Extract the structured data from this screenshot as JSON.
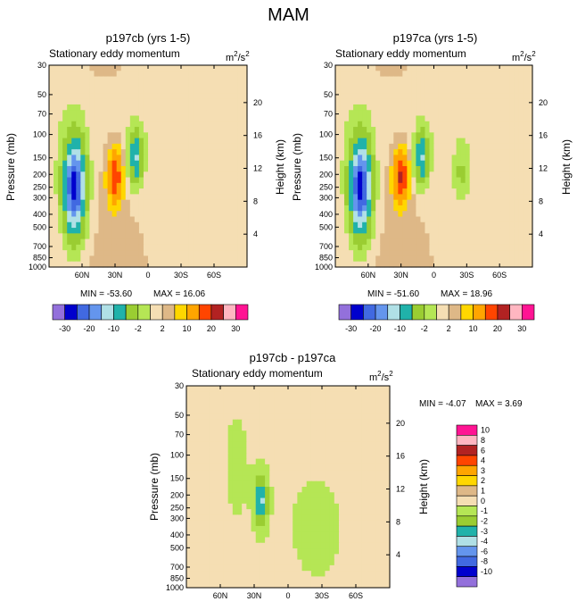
{
  "page": {
    "title": "MAM"
  },
  "colors": {
    "palette_abs": [
      "#9370db",
      "#0000cd",
      "#4169e1",
      "#6495ed",
      "#b0e0e6",
      "#20b2aa",
      "#9acd32",
      "#b5e655",
      "#f5deb3",
      "#deb887",
      "#ffd700",
      "#ffa500",
      "#ff4500",
      "#b22222",
      "#ffb6c1",
      "#ff1493"
    ],
    "palette_diff": [
      "#9370db",
      "#0000cd",
      "#4169e1",
      "#6495ed",
      "#b0e0e6",
      "#20b2aa",
      "#9acd32",
      "#b5e655",
      "#f5deb3",
      "#deb887",
      "#ffd700",
      "#ffa500",
      "#ff4500",
      "#b22222",
      "#ffb6c1",
      "#ff1493"
    ]
  },
  "chart_data": [
    {
      "type": "heatmap",
      "title": "p197cb (yrs 1-5)",
      "subtitle": "Stationary eddy momentum",
      "units_base": "m",
      "units_sup1": "2",
      "units_mid": "/s",
      "units_sup2": "2",
      "xlabel": "",
      "ylabel": "Pressure (mb)",
      "ylabel_right": "Height (km)",
      "x_ticks": [
        "60N",
        "30N",
        "0",
        "30S",
        "60S"
      ],
      "y_ticks": [
        "30",
        "50",
        "70",
        "100",
        "150",
        "200",
        "250",
        "300",
        "400",
        "500",
        "700",
        "850",
        "1000"
      ],
      "height_ticks": [
        "20",
        "16",
        "12",
        "8",
        "4"
      ],
      "min_text": "MIN = -53.60",
      "max_text": "MAX =  16.06",
      "min": -53.6,
      "max": 16.06,
      "colorbar_labels": [
        "-30",
        "-20",
        "-10",
        "-2",
        "2",
        "10",
        "20",
        "30"
      ],
      "features": [
        {
          "lat": 67,
          "p": 250,
          "value": -30
        },
        {
          "lat": 30,
          "p": 210,
          "value": 14
        },
        {
          "lat": 11,
          "p": 150,
          "value": -15
        },
        {
          "lat": -35,
          "p": 200,
          "value": -1
        }
      ]
    },
    {
      "type": "heatmap",
      "title": "p197ca (yrs 1-5)",
      "subtitle": "Stationary eddy momentum",
      "units_base": "m",
      "units_sup1": "2",
      "units_mid": "/s",
      "units_sup2": "2",
      "xlabel": "",
      "ylabel": "Pressure (mb)",
      "ylabel_right": "Height (km)",
      "x_ticks": [
        "60N",
        "30N",
        "0",
        "30S",
        "60S"
      ],
      "y_ticks": [
        "30",
        "50",
        "70",
        "100",
        "150",
        "200",
        "250",
        "300",
        "400",
        "500",
        "700",
        "850",
        "1000"
      ],
      "height_ticks": [
        "20",
        "16",
        "12",
        "8",
        "4"
      ],
      "min_text": "MIN = -51.60",
      "max_text": "MAX =  18.96",
      "min": -51.6,
      "max": 18.96,
      "colorbar_labels": [
        "-30",
        "-20",
        "-10",
        "-2",
        "2",
        "10",
        "20",
        "30"
      ],
      "features": [
        {
          "lat": 67,
          "p": 250,
          "value": -30
        },
        {
          "lat": 30,
          "p": 210,
          "value": 16
        },
        {
          "lat": 11,
          "p": 150,
          "value": -15
        },
        {
          "lat": -25,
          "p": 200,
          "value": -5
        }
      ]
    },
    {
      "type": "heatmap",
      "title": "p197cb - p197ca",
      "subtitle": "Stationary eddy momentum",
      "units_base": "m",
      "units_sup1": "2",
      "units_mid": "/s",
      "units_sup2": "2",
      "xlabel": "",
      "ylabel": "Pressure (mb)",
      "ylabel_right": "Height (km)",
      "x_ticks": [
        "60N",
        "30N",
        "0",
        "30S",
        "60S"
      ],
      "y_ticks": [
        "30",
        "50",
        "70",
        "100",
        "150",
        "200",
        "250",
        "300",
        "400",
        "500",
        "700",
        "850",
        "1000"
      ],
      "height_ticks": [
        "20",
        "16",
        "12",
        "8",
        "4"
      ],
      "min_text": "MIN = -4.07",
      "max_text": "MAX =   3.69",
      "min": -4.07,
      "max": 3.69,
      "colorbar_labels": [
        "10",
        "8",
        "6",
        "4",
        "3",
        "2",
        "1",
        "0",
        "-1",
        "-2",
        "-3",
        "-4",
        "-6",
        "-8",
        "-10"
      ],
      "features": [
        {
          "lat": 24,
          "p": 220,
          "value": -3.5
        }
      ]
    }
  ]
}
